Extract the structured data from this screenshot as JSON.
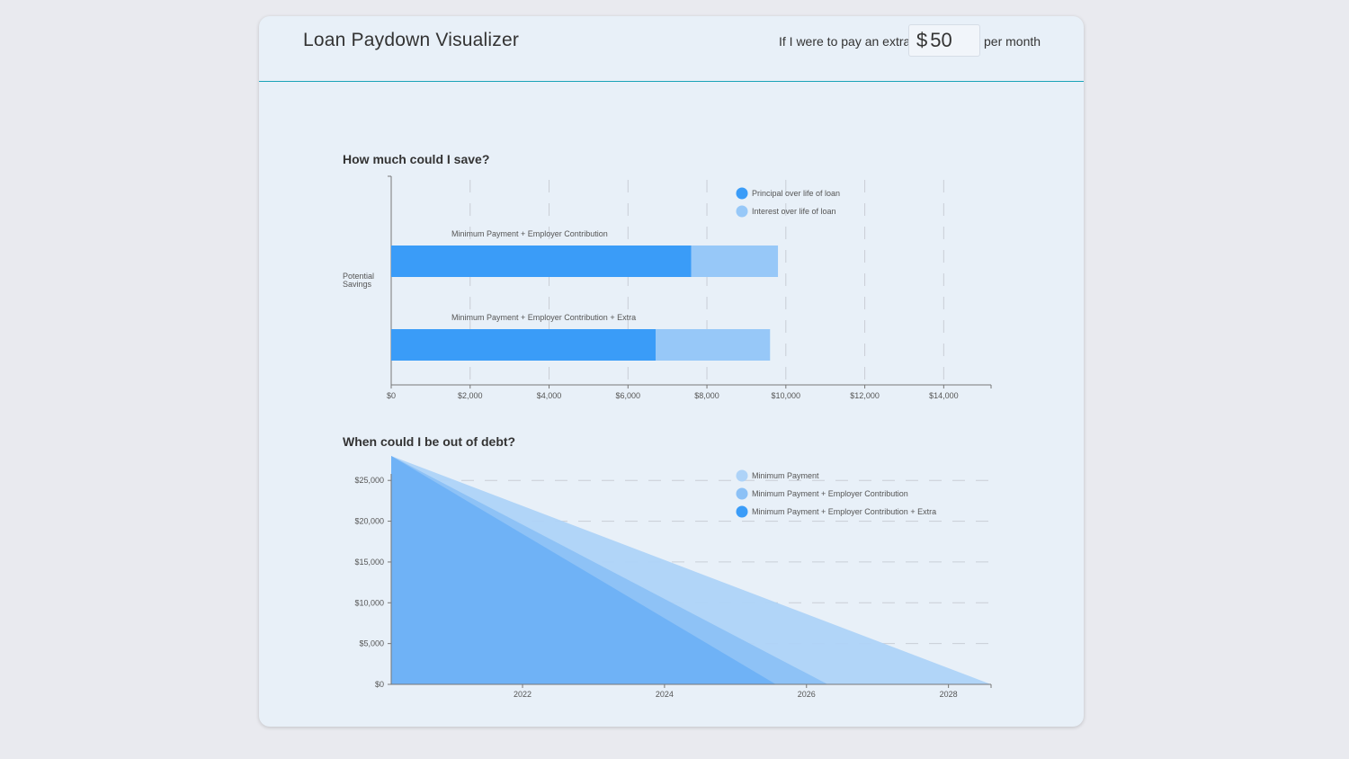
{
  "header": {
    "title": "Loan Paydown Visualizer",
    "extra_prefix": "If I were to pay an extra",
    "currency_symbol": "$",
    "extra_value": "50",
    "extra_suffix": "per month"
  },
  "colors": {
    "principal": "#3a9cf8",
    "interest": "#97c8f8",
    "min_payment": "#aed3f8",
    "min_employer": "#8cc1f6",
    "min_employer_extra": "#6eb1f6",
    "accent_line": "#1aa3b8"
  },
  "chart_data": [
    {
      "type": "bar",
      "orientation": "horizontal",
      "stacked": true,
      "title": "How much could I save?",
      "ylabel": "Potential Savings",
      "categories": [
        "Minimum Payment + Employer Contribution",
        "Minimum Payment + Employer Contribution + Extra"
      ],
      "series": [
        {
          "name": "Principal over life of loan",
          "values": [
            7600,
            6700
          ]
        },
        {
          "name": "Interest over life of loan",
          "values": [
            2200,
            2900
          ]
        }
      ],
      "xlim": [
        0,
        15200
      ],
      "xticks": [
        0,
        2000,
        4000,
        6000,
        8000,
        10000,
        12000,
        14000
      ],
      "xtick_labels": [
        "$0",
        "$2,000",
        "$4,000",
        "$6,000",
        "$8,000",
        "$10,000",
        "$12,000",
        "$14,000"
      ],
      "legend_position": "top-right",
      "grid": "vertical-dashed"
    },
    {
      "type": "area",
      "title": "When could I be out of debt?",
      "ylim": [
        0,
        28000
      ],
      "xlim": [
        2020.15,
        2028.6
      ],
      "yticks": [
        0,
        5000,
        10000,
        15000,
        20000,
        25000
      ],
      "ytick_labels": [
        "$0",
        "$5,000",
        "$10,000",
        "$15,000",
        "$20,000",
        "$25,000"
      ],
      "xticks": [
        2022,
        2024,
        2026,
        2028
      ],
      "xtick_labels": [
        "2022",
        "2024",
        "2026",
        "2028"
      ],
      "series": [
        {
          "name": "Minimum Payment",
          "x": [
            2020.15,
            2028.6
          ],
          "y": [
            28000,
            0
          ]
        },
        {
          "name": "Minimum Payment + Employer Contribution",
          "x": [
            2020.15,
            2026.3
          ],
          "y": [
            28000,
            0
          ]
        },
        {
          "name": "Minimum Payment + Employer Contribution + Extra",
          "x": [
            2020.15,
            2025.57
          ],
          "y": [
            28000,
            0
          ]
        }
      ],
      "legend_position": "top-right",
      "grid": "horizontal-dashed"
    }
  ]
}
